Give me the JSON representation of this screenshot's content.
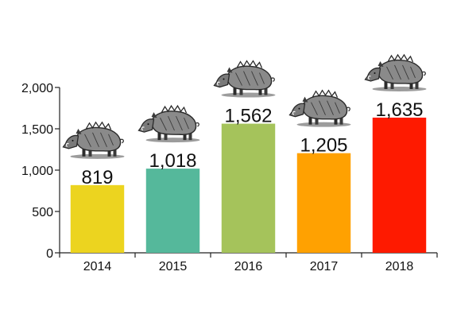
{
  "chart_data": {
    "type": "bar",
    "categories": [
      "2014",
      "2015",
      "2016",
      "2017",
      "2018"
    ],
    "values": [
      819,
      1018,
      1562,
      1205,
      1635
    ],
    "data_labels": [
      "819",
      "1,018",
      "1,562",
      "1,205",
      "1,635"
    ],
    "colors": [
      "#ecd41f",
      "#55b89b",
      "#a5c35b",
      "#ffa101",
      "#fe1a00"
    ],
    "ylim": [
      0,
      2000
    ],
    "yticks": [
      0,
      500,
      1000,
      1500,
      2000
    ],
    "ytick_labels": [
      "0",
      "500",
      "1,000",
      "1,500",
      "2,000"
    ],
    "grid": false,
    "legend": "none",
    "title": "",
    "xlabel": "",
    "ylabel": "",
    "bar_decoration_icon": "wild-boar-icon"
  }
}
